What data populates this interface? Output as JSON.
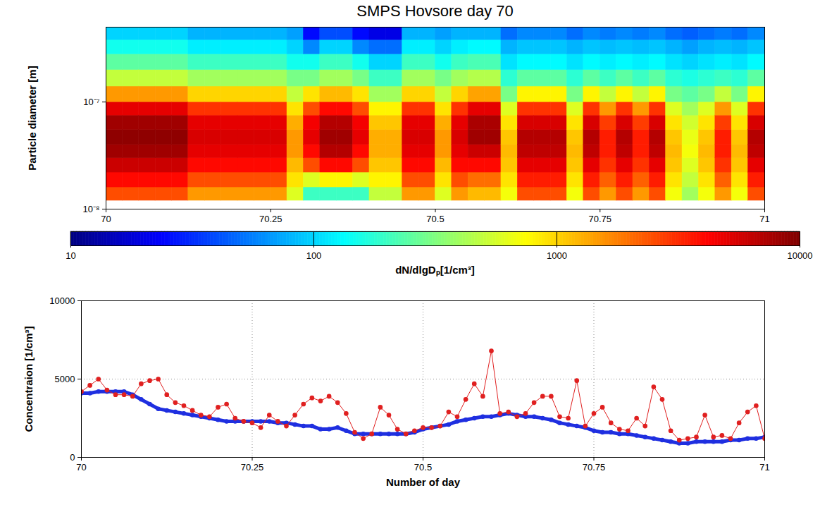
{
  "chart_data": [
    {
      "type": "heatmap",
      "title": "SMPS Hovsore day 70",
      "y_label": "Particle diameter [m]",
      "log": "y",
      "xlim": [
        70,
        71
      ],
      "xticks": [
        70,
        70.25,
        70.5,
        70.75,
        71
      ],
      "ylim": [
        1e-08,
        5e-07
      ],
      "yticks": [
        {
          "value": 1e-08,
          "label": "10⁻⁸"
        },
        {
          "value": 1e-07,
          "label": "10⁻⁷"
        }
      ],
      "heatmap": {
        "x_bins": [
          70,
          70.025,
          70.05,
          70.075,
          70.1,
          70.125,
          70.15,
          70.175,
          70.2,
          70.225,
          70.25,
          70.275,
          70.3,
          70.325,
          70.35,
          70.375,
          70.4,
          70.425,
          70.45,
          70.475,
          70.5,
          70.525,
          70.55,
          70.575,
          70.6,
          70.625,
          70.65,
          70.675,
          70.7,
          70.725,
          70.75,
          70.775,
          70.8,
          70.825,
          70.85,
          70.875,
          70.9,
          70.925,
          70.95,
          70.975,
          71
        ],
        "y_bins": [
          1.2e-08,
          1.6e-08,
          2.2e-08,
          3e-08,
          4e-08,
          5.5e-08,
          7.5e-08,
          1e-07,
          1.4e-07,
          2e-07,
          2.8e-07,
          3.8e-07,
          5e-07
        ],
        "cells": [
          [
            2500,
            4000,
            6000,
            8000,
            9000,
            8000,
            5000,
            1500,
            500,
            250,
            150,
            100
          ],
          [
            2500,
            4000,
            6000,
            8000,
            9000,
            8000,
            5000,
            1500,
            500,
            250,
            150,
            100
          ],
          [
            2500,
            4000,
            6000,
            8000,
            9000,
            8000,
            5000,
            1500,
            500,
            250,
            150,
            100
          ],
          [
            2500,
            4000,
            6000,
            8000,
            9000,
            8000,
            5000,
            1500,
            500,
            250,
            150,
            100
          ],
          [
            2500,
            4000,
            6000,
            8000,
            9000,
            8000,
            5000,
            1500,
            500,
            250,
            150,
            100
          ],
          [
            1500,
            2500,
            4000,
            5000,
            5500,
            5000,
            3000,
            1000,
            400,
            200,
            120,
            80
          ],
          [
            1500,
            2500,
            4000,
            5000,
            5500,
            5000,
            3000,
            1000,
            400,
            200,
            120,
            80
          ],
          [
            1500,
            2500,
            4000,
            5000,
            5500,
            5000,
            3000,
            1000,
            400,
            200,
            120,
            80
          ],
          [
            1500,
            2500,
            4000,
            5000,
            5500,
            5000,
            3000,
            1000,
            400,
            200,
            120,
            80
          ],
          [
            1500,
            2500,
            4000,
            5000,
            5500,
            5000,
            3000,
            1000,
            400,
            200,
            120,
            80
          ],
          [
            1500,
            2500,
            4000,
            5000,
            5500,
            5000,
            3000,
            1000,
            400,
            200,
            120,
            80
          ],
          [
            600,
            900,
            1200,
            1500,
            1500,
            1300,
            900,
            500,
            300,
            150,
            100,
            70
          ],
          [
            200,
            600,
            2500,
            4000,
            5000,
            4500,
            2500,
            900,
            300,
            150,
            60,
            25
          ],
          [
            200,
            800,
            4000,
            7000,
            8000,
            7000,
            4000,
            1200,
            400,
            200,
            100,
            40
          ],
          [
            200,
            800,
            4000,
            7000,
            8000,
            7000,
            4000,
            1200,
            400,
            200,
            100,
            40
          ],
          [
            200,
            600,
            2500,
            4000,
            5000,
            4500,
            2500,
            900,
            300,
            150,
            60,
            25
          ],
          [
            500,
            800,
            1100,
            1300,
            1300,
            1100,
            800,
            400,
            200,
            100,
            50,
            20
          ],
          [
            500,
            800,
            1100,
            1300,
            1300,
            1100,
            800,
            400,
            200,
            100,
            50,
            20
          ],
          [
            1500,
            2500,
            4000,
            5000,
            5500,
            5000,
            3000,
            1000,
            400,
            200,
            120,
            80
          ],
          [
            1500,
            2500,
            4000,
            5000,
            5500,
            5000,
            3000,
            1000,
            400,
            200,
            120,
            80
          ],
          [
            600,
            900,
            1200,
            1500,
            1500,
            1300,
            900,
            500,
            300,
            150,
            100,
            70
          ],
          [
            1500,
            2500,
            4000,
            5000,
            5500,
            5000,
            3000,
            1000,
            400,
            200,
            120,
            80
          ],
          [
            1200,
            2000,
            4000,
            6000,
            8000,
            7500,
            5000,
            1400,
            450,
            220,
            130,
            80
          ],
          [
            1200,
            2000,
            4000,
            6000,
            8000,
            7500,
            5000,
            1400,
            450,
            220,
            130,
            80
          ],
          [
            700,
            900,
            1100,
            1200,
            1100,
            900,
            600,
            300,
            180,
            110,
            80,
            50
          ],
          [
            2500,
            3500,
            5000,
            6500,
            7000,
            5500,
            3000,
            800,
            250,
            130,
            90,
            60
          ],
          [
            2500,
            3500,
            5000,
            6500,
            7000,
            5500,
            3000,
            800,
            250,
            130,
            90,
            60
          ],
          [
            2500,
            3500,
            5000,
            6500,
            7000,
            5500,
            3000,
            800,
            250,
            130,
            90,
            60
          ],
          [
            700,
            900,
            1100,
            1200,
            1100,
            900,
            600,
            300,
            180,
            110,
            80,
            50
          ],
          [
            2500,
            3500,
            5000,
            6500,
            7000,
            5500,
            3000,
            800,
            250,
            130,
            90,
            60
          ],
          [
            1500,
            2200,
            3000,
            3500,
            3500,
            2800,
            1500,
            500,
            200,
            120,
            85,
            55
          ],
          [
            2500,
            3500,
            5000,
            6500,
            7000,
            5500,
            3000,
            800,
            250,
            130,
            90,
            60
          ],
          [
            1500,
            2200,
            3000,
            3500,
            3500,
            2800,
            1500,
            500,
            200,
            120,
            85,
            55
          ],
          [
            2500,
            3500,
            5000,
            6500,
            7000,
            5500,
            3000,
            800,
            250,
            130,
            90,
            60
          ],
          [
            700,
            900,
            1100,
            1200,
            1100,
            900,
            600,
            300,
            180,
            110,
            80,
            50
          ],
          [
            400,
            500,
            600,
            700,
            650,
            550,
            400,
            250,
            160,
            100,
            70,
            45
          ],
          [
            700,
            900,
            1100,
            1200,
            1100,
            900,
            600,
            300,
            180,
            110,
            80,
            50
          ],
          [
            1500,
            2200,
            3000,
            3500,
            3500,
            2800,
            1500,
            500,
            200,
            120,
            85,
            55
          ],
          [
            700,
            900,
            1100,
            1200,
            1100,
            900,
            600,
            300,
            180,
            110,
            80,
            50
          ],
          [
            2500,
            3500,
            5000,
            6500,
            7000,
            5500,
            3000,
            800,
            250,
            130,
            90,
            60
          ]
        ]
      },
      "colorbar": {
        "label": "dN/dlgDₚ[1/cm³]",
        "range": [
          10,
          10000
        ],
        "ticks": [
          10,
          100,
          1000,
          10000
        ]
      }
    },
    {
      "type": "line",
      "x_label": "Number of day",
      "y_label": "Concentraion [1/cm³]",
      "xlim": [
        70,
        71
      ],
      "xticks": [
        70,
        70.25,
        70.5,
        70.75,
        71
      ],
      "ylim": [
        0,
        10000
      ],
      "yticks": [
        0,
        5000,
        10000
      ],
      "grid": true,
      "x": [
        70,
        70.0125,
        70.025,
        70.0375,
        70.05,
        70.0625,
        70.075,
        70.0875,
        70.1,
        70.1125,
        70.125,
        70.1375,
        70.15,
        70.1625,
        70.175,
        70.1875,
        70.2,
        70.2125,
        70.225,
        70.2375,
        70.25,
        70.2625,
        70.275,
        70.2875,
        70.3,
        70.3125,
        70.325,
        70.3375,
        70.35,
        70.3625,
        70.375,
        70.3875,
        70.4,
        70.4125,
        70.425,
        70.4375,
        70.45,
        70.4625,
        70.475,
        70.4875,
        70.5,
        70.5125,
        70.525,
        70.5375,
        70.55,
        70.5625,
        70.575,
        70.5875,
        70.6,
        70.6125,
        70.625,
        70.6375,
        70.65,
        70.6625,
        70.675,
        70.6875,
        70.7,
        70.7125,
        70.725,
        70.7375,
        70.75,
        70.7625,
        70.775,
        70.7875,
        70.8,
        70.8125,
        70.825,
        70.8375,
        70.85,
        70.8625,
        70.875,
        70.8875,
        70.9,
        70.9125,
        70.925,
        70.9375,
        70.95,
        70.9625,
        70.975,
        70.9875,
        71
      ],
      "series": [
        {
          "color": "#e02020",
          "marker": "circle",
          "values": [
            4200,
            4600,
            5000,
            4300,
            4000,
            4000,
            3900,
            4700,
            4900,
            5000,
            4000,
            3500,
            3300,
            3000,
            2700,
            2600,
            3200,
            3400,
            2500,
            2300,
            2200,
            1900,
            2700,
            2300,
            2000,
            2700,
            3400,
            3800,
            3600,
            3900,
            3500,
            2800,
            1600,
            1200,
            1500,
            3200,
            2700,
            1800,
            1500,
            1700,
            1900,
            1900,
            2000,
            2900,
            2600,
            3700,
            4700,
            3900,
            6800,
            2800,
            2900,
            2600,
            2800,
            3500,
            3900,
            3900,
            2600,
            2500,
            4900,
            2000,
            2800,
            3200,
            2200,
            1800,
            1700,
            2500,
            2000,
            4500,
            3700,
            1700,
            1100,
            1200,
            1300,
            2700,
            1300,
            1400,
            1200,
            2200,
            2900,
            3300,
            1200
          ]
        },
        {
          "color": "#1f2fe0",
          "marker": "circle",
          "values": [
            4100,
            4100,
            4200,
            4200,
            4200,
            4200,
            4000,
            3700,
            3400,
            3100,
            3000,
            2900,
            2800,
            2700,
            2600,
            2500,
            2400,
            2300,
            2300,
            2300,
            2300,
            2300,
            2300,
            2200,
            2200,
            2100,
            2000,
            2000,
            1800,
            1800,
            1900,
            1700,
            1500,
            1500,
            1500,
            1500,
            1500,
            1500,
            1500,
            1600,
            1800,
            1900,
            2000,
            2100,
            2300,
            2400,
            2500,
            2600,
            2600,
            2700,
            2800,
            2700,
            2600,
            2600,
            2500,
            2400,
            2200,
            2100,
            2000,
            1900,
            1700,
            1600,
            1600,
            1500,
            1500,
            1400,
            1300,
            1200,
            1100,
            1000,
            900,
            900,
            1000,
            1000,
            1000,
            1000,
            1100,
            1100,
            1200,
            1200,
            1300
          ]
        }
      ]
    }
  ]
}
